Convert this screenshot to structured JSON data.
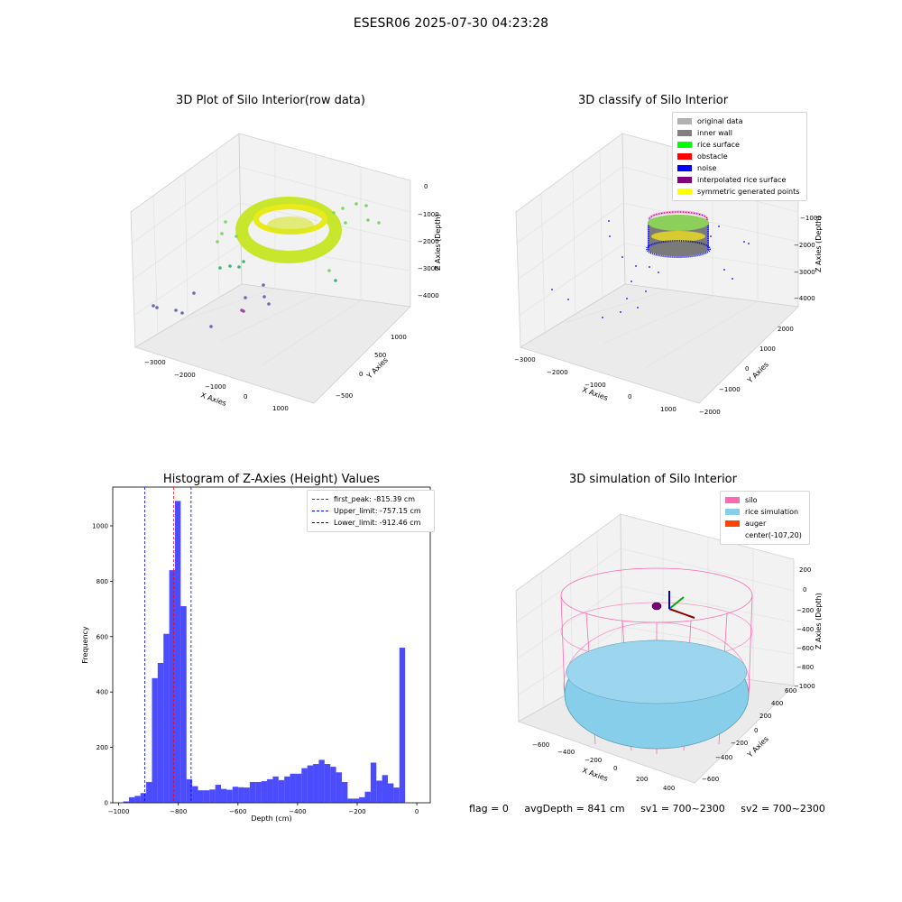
{
  "suptitle": "ESESR06 2025-07-30 04:23:28",
  "panels": {
    "raw": {
      "title": "3D Plot of Silo Interior(row data)",
      "xlabel": "X Axies",
      "ylabel": "Y Axies",
      "zlabel": "Z Axies (Depth)",
      "xticks": [
        "−3000",
        "−2000",
        "−1000",
        "0",
        "1000"
      ],
      "yticks": [
        "−500",
        "0",
        "500",
        "1000"
      ],
      "zticks": [
        "0",
        "−1000",
        "−2000",
        "−3000",
        "−4000"
      ]
    },
    "classify": {
      "title": "3D classify of Silo Interior",
      "xlabel": "X Axies",
      "ylabel": "Y Axies",
      "zlabel": "Z Axies (Depth)",
      "xticks": [
        "−3000",
        "−2000",
        "−1000",
        "0",
        "1000"
      ],
      "yticks": [
        "−2000",
        "−1000",
        "0",
        "1000",
        "2000"
      ],
      "zticks": [
        "−1000",
        "−2000",
        "−3000",
        "−4000"
      ],
      "legend": [
        {
          "label": "original data",
          "color": "#b0b0b0"
        },
        {
          "label": "inner wall",
          "color": "#808080"
        },
        {
          "label": "rice surface",
          "color": "#00ff00"
        },
        {
          "label": "obstacle",
          "color": "#ff0000"
        },
        {
          "label": "noise",
          "color": "#0000ff"
        },
        {
          "label": "interpolated rice surface",
          "color": "#800080"
        },
        {
          "label": "symmetric generated points",
          "color": "#ffff00"
        }
      ]
    },
    "simulation": {
      "title": "3D simulation of Silo Interior",
      "xlabel": "X Axies",
      "ylabel": "Y Axies",
      "zlabel": "Z Axies (Depth)",
      "xticks": [
        "−600",
        "−400",
        "−200",
        "0",
        "200",
        "400"
      ],
      "yticks": [
        "−600",
        "−400",
        "−200",
        "0",
        "200",
        "400",
        "600"
      ],
      "zticks": [
        "200",
        "0",
        "−200",
        "−400",
        "−600",
        "−800",
        "−1000"
      ],
      "legend": [
        {
          "label": "silo",
          "color": "#ff69b4"
        },
        {
          "label": "rice simulation",
          "color": "#87ceeb"
        },
        {
          "label": "auger",
          "color": "#ff4500"
        },
        {
          "label": "center(-107,20)",
          "color": ""
        }
      ]
    }
  },
  "chart_data": {
    "type": "bar",
    "title": "Histogram of Z-Axies (Height) Values",
    "xlabel": "Depth (cm)",
    "ylabel": "Frequency",
    "xlim": [
      -1020,
      45
    ],
    "ylim": [
      0,
      1140
    ],
    "xticks": [
      -1000,
      -800,
      -600,
      -400,
      -200,
      0
    ],
    "xtick_labels": [
      "−1000",
      "−800",
      "−600",
      "−400",
      "−200",
      "0"
    ],
    "yticks": [
      0,
      200,
      400,
      600,
      800,
      1000
    ],
    "bin_start": -985,
    "bin_width": 19.3,
    "values": [
      5,
      20,
      25,
      35,
      75,
      450,
      505,
      610,
      840,
      1090,
      710,
      85,
      60,
      45,
      45,
      48,
      65,
      50,
      47,
      58,
      56,
      55,
      75,
      75,
      78,
      85,
      95,
      82,
      95,
      105,
      105,
      125,
      135,
      140,
      155,
      140,
      130,
      110,
      75,
      15,
      15,
      20,
      40,
      145,
      80,
      100,
      70,
      55,
      560
    ],
    "bar_color": "#0000ff",
    "lines": [
      {
        "label": "first_peak: -815.39 cm",
        "x": -815.39,
        "color": "#ff0000"
      },
      {
        "label": "Upper_limit: -757.15 cm",
        "x": -757.15,
        "color": "#0000ff"
      },
      {
        "label": "Lower_limit: -912.46 cm",
        "x": -912.46,
        "color": "#0000ff"
      }
    ],
    "legend_position": "top-right"
  },
  "footer": {
    "flag": "flag = 0",
    "avg": "avgDepth = 841 cm",
    "sv1": "sv1 = 700~2300",
    "sv2": "sv2 = 700~2300"
  }
}
